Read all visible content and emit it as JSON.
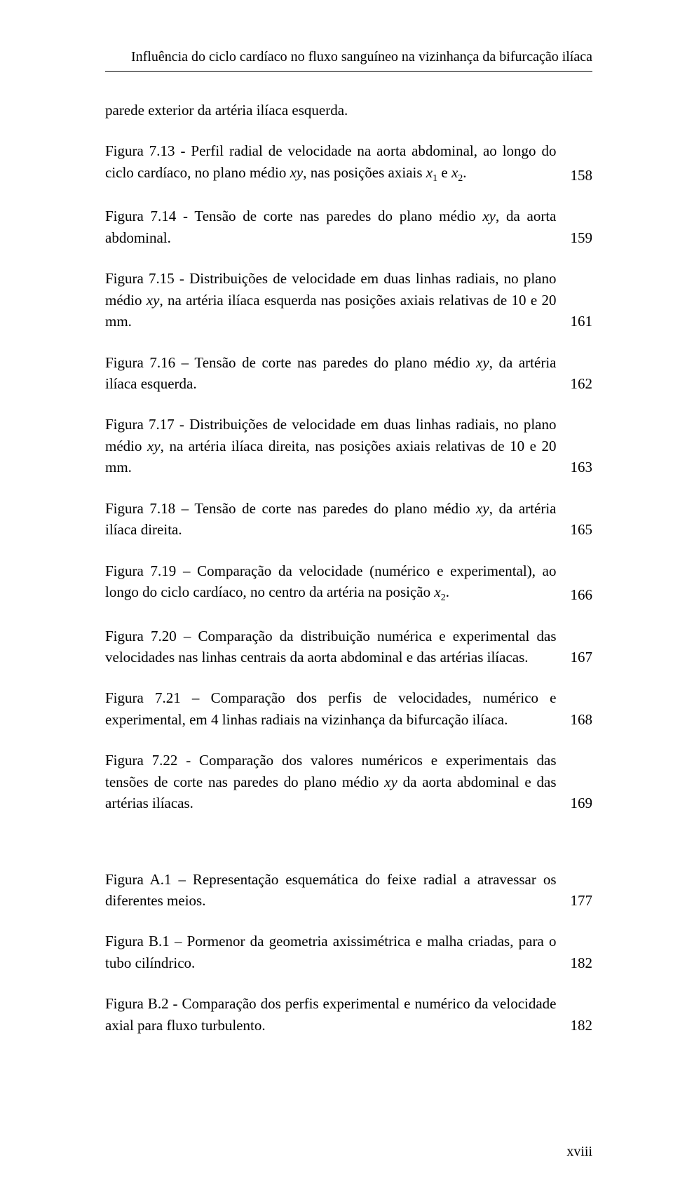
{
  "header": {
    "title": "Influência do ciclo cardíaco no fluxo sanguíneo na vizinhança da bifurcação ilíaca"
  },
  "entries": [
    {
      "prefix": "parede exterior da artéria ilíaca esquerda.",
      "page": ""
    },
    {
      "prefix": "Figura 7.13 - Perfil radial de velocidade na aorta abdominal, ao longo do ciclo cardíaco, no plano médio ",
      "italic1": "xy",
      "mid1": ", nas posições axiais ",
      "italic2": "x",
      "sub1": "1",
      "mid2": " e ",
      "italic3": "x",
      "sub2": "2",
      "suffix": ".",
      "page": "158"
    },
    {
      "prefix": "Figura 7.14 - Tensão de corte nas paredes do plano médio ",
      "italic1": "xy",
      "suffix": ", da aorta abdominal.",
      "page": "159"
    },
    {
      "prefix": "Figura 7.15 - Distribuições de velocidade em duas linhas radiais, no plano médio ",
      "italic1": "xy",
      "suffix": ", na artéria ilíaca esquerda nas posições axiais relativas de 10 e 20 mm.",
      "page": "161"
    },
    {
      "prefix": "Figura 7.16 – Tensão de corte nas paredes do plano médio ",
      "italic1": "xy",
      "suffix": ", da artéria ilíaca esquerda.",
      "page": "162"
    },
    {
      "prefix": "Figura 7.17 - Distribuições de velocidade em duas linhas radiais, no plano médio ",
      "italic1": "xy",
      "suffix": ", na artéria ilíaca direita, nas posições axiais relativas de 10 e 20 mm.",
      "page": "163"
    },
    {
      "prefix": "Figura 7.18 – Tensão de corte nas paredes do plano médio ",
      "italic1": "xy",
      "suffix": ", da artéria ilíaca direita.",
      "page": "165"
    },
    {
      "prefix": "Figura 7.19 – Comparação da velocidade (numérico e experimental), ao longo do ciclo cardíaco, no centro da artéria na posição ",
      "italic1": "x",
      "sub1": "2",
      "suffix": ".",
      "page": "166"
    },
    {
      "prefix": "Figura 7.20 – Comparação da distribuição numérica e experimental das velocidades nas linhas centrais da aorta abdominal e das artérias ilíacas.",
      "page": "167"
    },
    {
      "prefix": "Figura 7.21 – Comparação dos perfis de velocidades, numérico e experimental, em 4 linhas radiais na vizinhança da bifurcação ilíaca.",
      "page": "168"
    },
    {
      "prefix": "Figura 7.22 - Comparação dos valores numéricos e experimentais das tensões de corte nas paredes do plano médio ",
      "italic1": "xy",
      "suffix": " da aorta abdominal e das artérias ilíacas.",
      "page": "169"
    },
    {
      "gap": true
    },
    {
      "prefix": "Figura A.1 – Representação esquemática do feixe radial a atravessar os diferentes meios.",
      "page": "177"
    },
    {
      "prefix": "Figura B.1 – Pormenor da geometria axissimétrica e malha criadas, para o tubo cilíndrico.",
      "page": "182"
    },
    {
      "prefix": "Figura B.2 - Comparação dos perfis experimental e numérico da velocidade axial para fluxo turbulento.",
      "page": "182"
    }
  ],
  "pagenum": "xviii"
}
